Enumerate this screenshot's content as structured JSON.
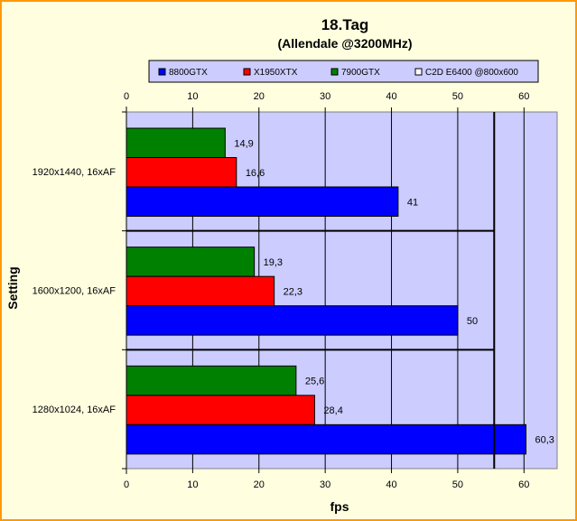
{
  "chart_data": {
    "type": "bar",
    "orientation": "horizontal",
    "title": "18.Tag",
    "subtitle": "(Allendale @3200MHz)",
    "xlabel": "fps",
    "ylabel": "Setting",
    "xlim": [
      0,
      65
    ],
    "xticks": [
      0,
      10,
      20,
      30,
      40,
      50,
      60
    ],
    "grid": true,
    "legend_position": "top",
    "categories": [
      "1920x1440, 16xAF",
      "1600x1200, 16xAF",
      "1280x1024, 16xAF"
    ],
    "series": [
      {
        "name": "8800GTX",
        "color": "#0000ff",
        "values": [
          41,
          50,
          60.3
        ],
        "labels": [
          "41",
          "50",
          "60,3"
        ]
      },
      {
        "name": "X1950XTX",
        "color": "#ff0000",
        "values": [
          16.6,
          22.3,
          28.4
        ],
        "labels": [
          "16,6",
          "22,3",
          "28,4"
        ]
      },
      {
        "name": "7900GTX",
        "color": "#008000",
        "values": [
          14.9,
          19.3,
          25.6
        ],
        "labels": [
          "14,9",
          "19,3",
          "25,6"
        ]
      },
      {
        "name": "C2D E6400 @800x600",
        "color": "#ffffff",
        "type": "reference-line",
        "value": 55.5
      }
    ],
    "colors": {
      "plot_background": "#ccccff",
      "page_background": "#ffffe0",
      "frame_border": "#ff9900"
    }
  }
}
